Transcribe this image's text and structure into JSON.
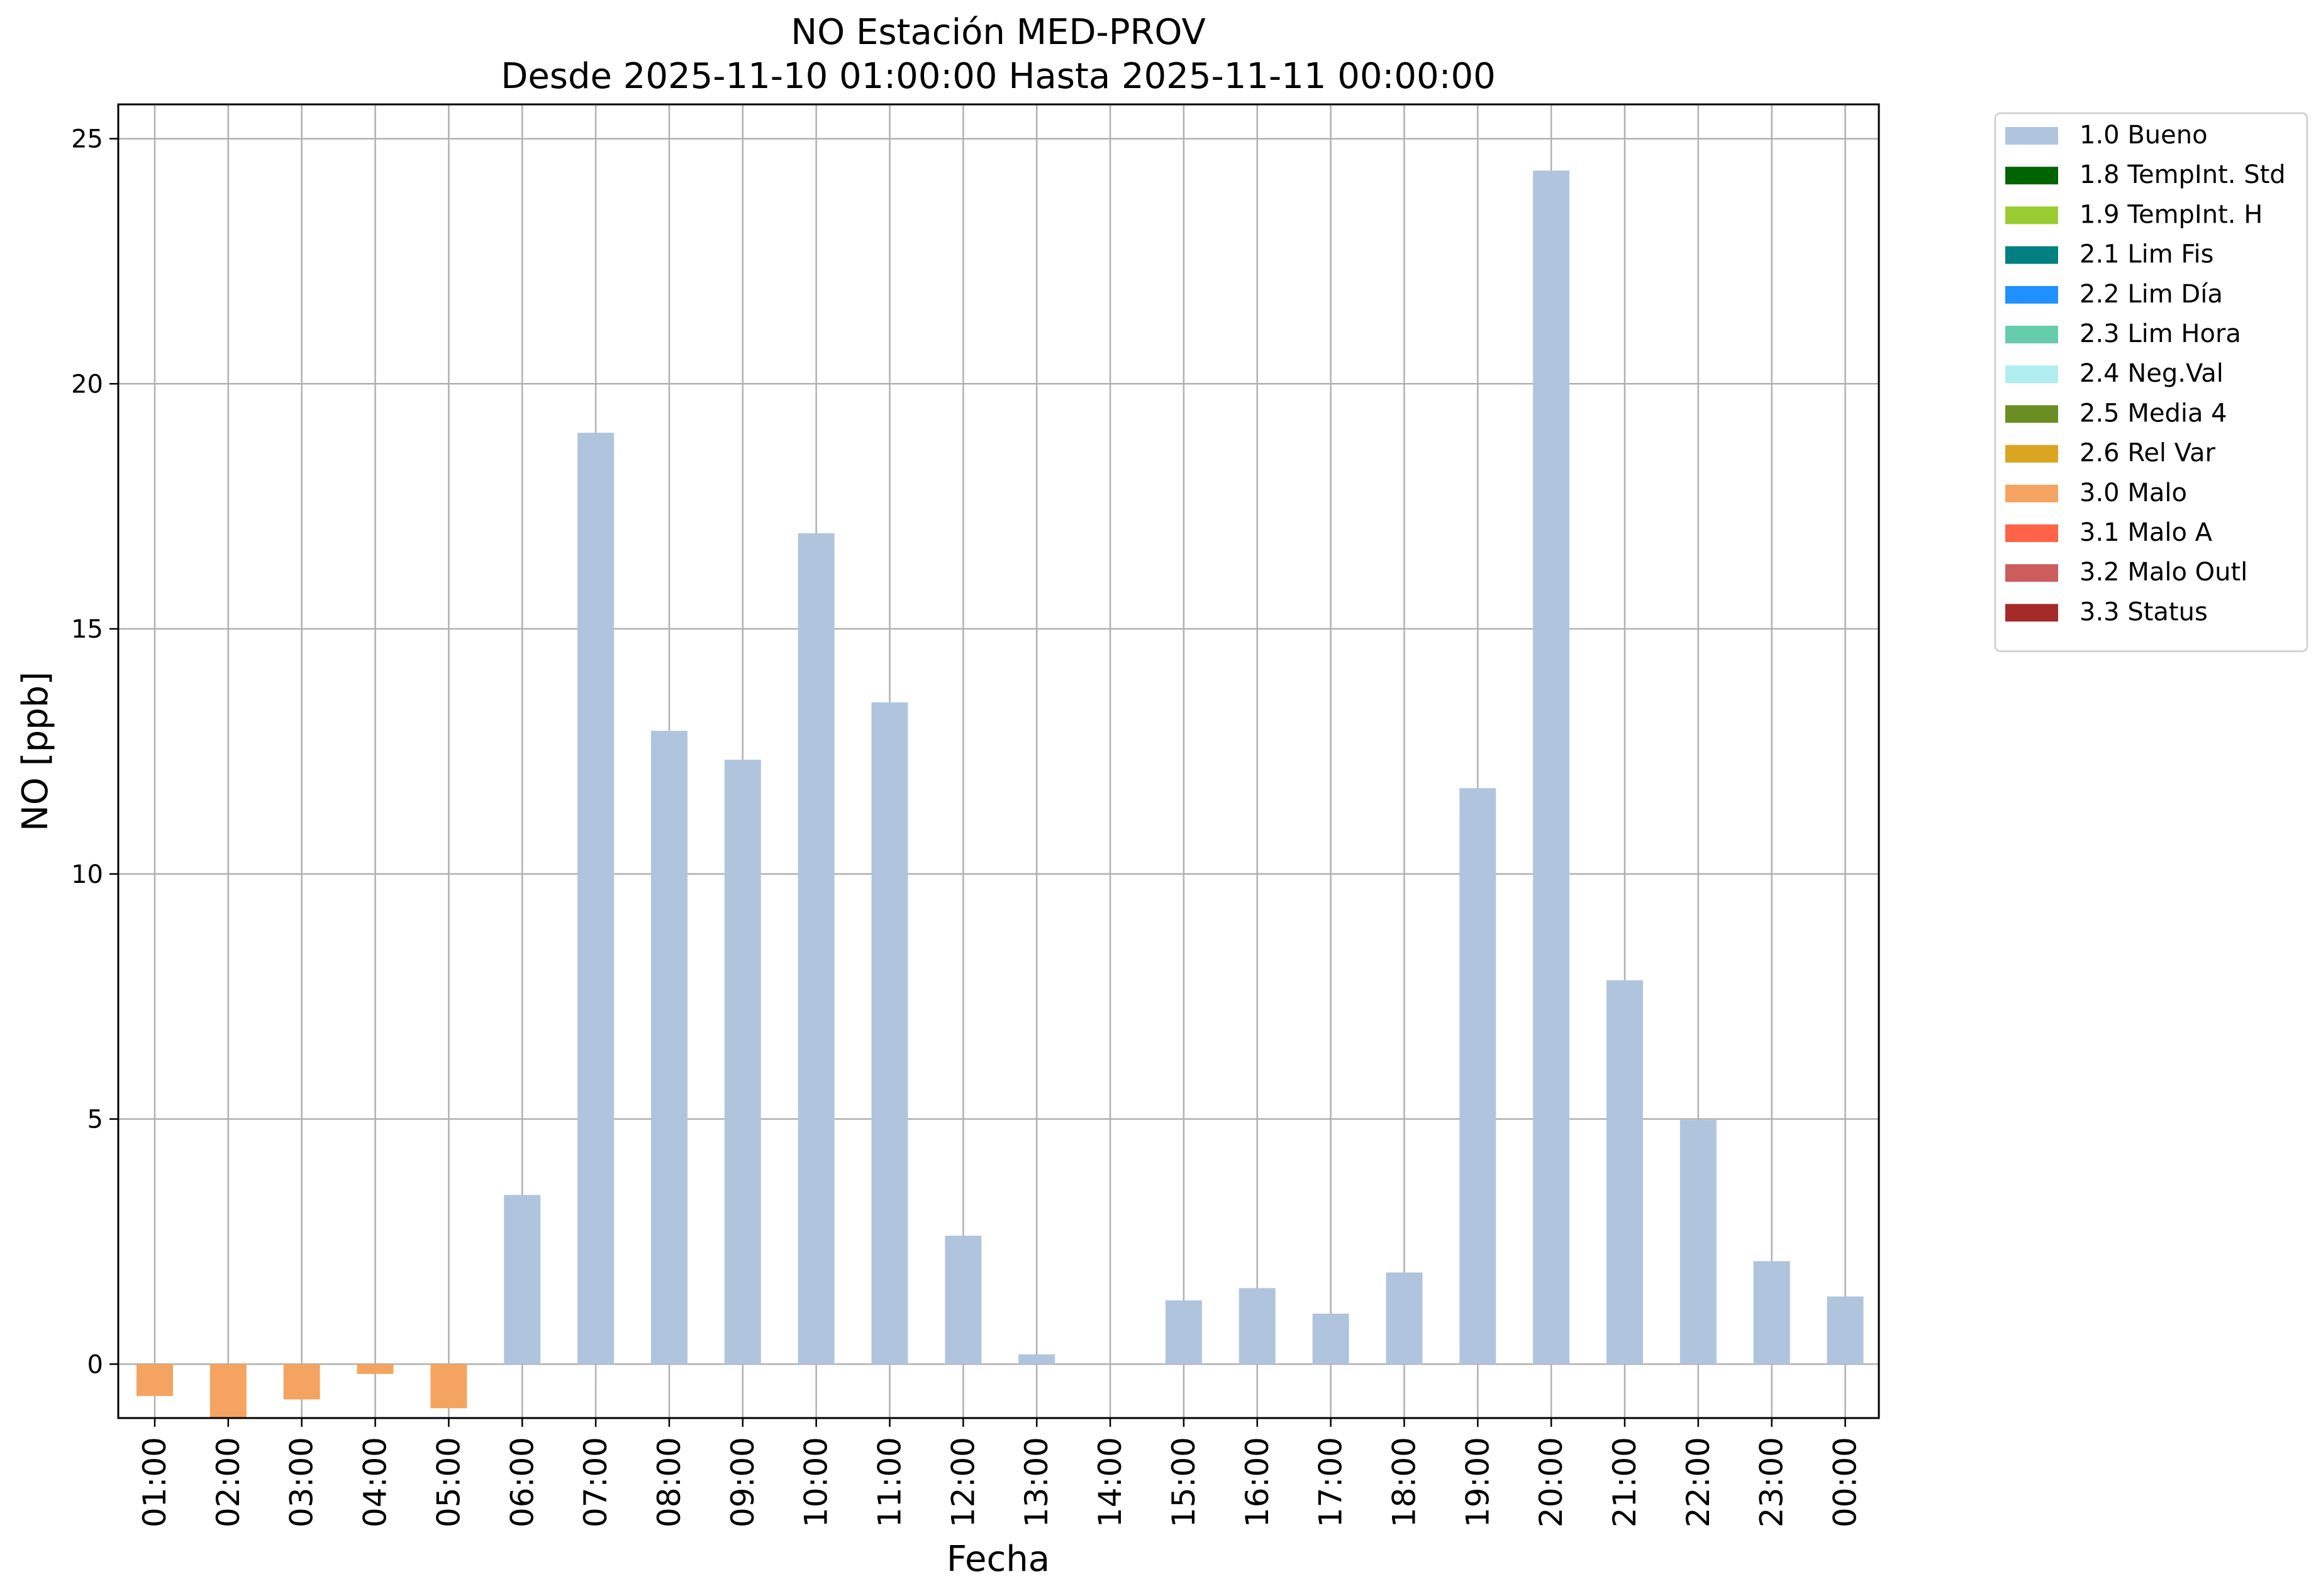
{
  "chart_data": {
    "type": "bar",
    "title": "NO Estación MED-PROV",
    "subtitle": "Desde 2025-11-10 01:00:00 Hasta 2025-11-11 00:00:00",
    "xlabel": "Fecha",
    "ylabel": "NO [ppb]",
    "ylim": [
      -1.1,
      25.7
    ],
    "yticks": [
      0,
      5,
      10,
      15,
      20,
      25
    ],
    "grid": true,
    "legend_position": "outside-top-right",
    "categories": [
      "01:00",
      "02:00",
      "03:00",
      "04:00",
      "05:00",
      "06:00",
      "07:00",
      "08:00",
      "09:00",
      "10:00",
      "11:00",
      "12:00",
      "13:00",
      "14:00",
      "15:00",
      "16:00",
      "17:00",
      "18:00",
      "19:00",
      "20:00",
      "21:00",
      "22:00",
      "23:00",
      "00:00"
    ],
    "values": [
      -0.65,
      -1.1,
      -0.72,
      -0.2,
      -0.9,
      3.45,
      19.0,
      12.92,
      12.33,
      16.95,
      13.5,
      2.62,
      0.2,
      0.0,
      1.3,
      1.55,
      1.03,
      1.87,
      11.75,
      24.35,
      7.83,
      4.98,
      2.1,
      1.38
    ],
    "flags": [
      "3.0 Malo",
      "3.0 Malo",
      "3.0 Malo",
      "3.0 Malo",
      "3.0 Malo",
      "1.0 Bueno",
      "1.0 Bueno",
      "1.0 Bueno",
      "1.0 Bueno",
      "1.0 Bueno",
      "1.0 Bueno",
      "1.0 Bueno",
      "1.0 Bueno",
      "1.0 Bueno",
      "1.0 Bueno",
      "1.0 Bueno",
      "1.0 Bueno",
      "1.0 Bueno",
      "1.0 Bueno",
      "1.0 Bueno",
      "1.0 Bueno",
      "1.0 Bueno",
      "1.0 Bueno",
      "1.0 Bueno"
    ],
    "legend": [
      {
        "label": "1.0 Bueno",
        "color": "#b0c4de"
      },
      {
        "label": "1.8 TempInt. Std",
        "color": "#006400"
      },
      {
        "label": "1.9 TempInt. H",
        "color": "#9acd32"
      },
      {
        "label": "2.1 Lim Fis",
        "color": "#008080"
      },
      {
        "label": "2.2 Lim Día",
        "color": "#1e90ff"
      },
      {
        "label": "2.3 Lim Hora",
        "color": "#66cdaa"
      },
      {
        "label": "2.4 Neg.Val",
        "color": "#afeeee"
      },
      {
        "label": "2.5 Media 4",
        "color": "#6b8e23"
      },
      {
        "label": "2.6 Rel Var",
        "color": "#daa520"
      },
      {
        "label": "3.0 Malo",
        "color": "#f4a460"
      },
      {
        "label": "3.1 Malo A",
        "color": "#ff6347"
      },
      {
        "label": "3.2 Malo Outl",
        "color": "#cd5c5c"
      },
      {
        "label": "3.3 Status",
        "color": "#a52a2a"
      }
    ]
  }
}
